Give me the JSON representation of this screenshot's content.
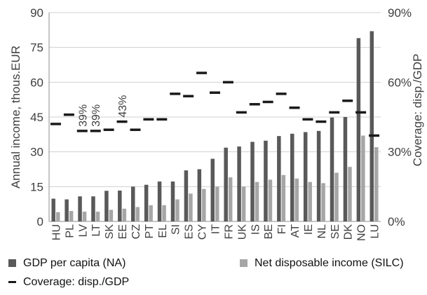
{
  "chart_data": {
    "type": "bar",
    "categories": [
      "HU",
      "PL",
      "LV",
      "LT",
      "SK",
      "EE",
      "CZ",
      "PT",
      "EL",
      "SI",
      "ES",
      "CY",
      "IT",
      "FR",
      "UK",
      "IS",
      "BE",
      "FI",
      "AT",
      "IE",
      "NL",
      "SE",
      "DK",
      "NO",
      "LU"
    ],
    "series": [
      {
        "name": "GDP per capita (NA)",
        "axis": "left",
        "color": "#595959",
        "values": [
          9.8,
          9.5,
          10.8,
          10.8,
          13.2,
          13.3,
          15,
          15.8,
          17.2,
          17.2,
          22,
          22.5,
          27,
          31.8,
          32.3,
          34.3,
          34.8,
          36.8,
          37.8,
          38.5,
          39,
          44.8,
          45,
          79,
          82
        ]
      },
      {
        "name": "Net disposable income (SILC)",
        "axis": "left",
        "color": "#a6a6a6",
        "values": [
          4,
          4.5,
          4.2,
          4.2,
          5,
          5.5,
          6.2,
          7,
          7,
          9.5,
          12,
          14,
          15,
          19,
          15,
          17,
          18,
          20,
          18.5,
          17,
          16.5,
          21,
          23.5,
          37,
          32
        ]
      },
      {
        "name": "Coverage: disp./GDP",
        "axis": "right",
        "type": "marker",
        "color": "#1a1a1a",
        "values": [
          42,
          46,
          39,
          39,
          39.5,
          43,
          39.5,
          44,
          44,
          55,
          54,
          64,
          55.5,
          60,
          47,
          50.5,
          51.5,
          55,
          49,
          44,
          43,
          47,
          52,
          47,
          37
        ]
      }
    ],
    "annotations": [
      {
        "category": "LV",
        "text": "39%"
      },
      {
        "category": "LT",
        "text": "39%"
      },
      {
        "category": "EE",
        "text": "43%"
      }
    ],
    "ylabel": "Annual income, thous.EUR",
    "y2label": "Coverage: disp./GDP",
    "ylim": [
      0,
      90
    ],
    "y2lim": [
      0,
      90
    ],
    "yticks": [
      "0",
      "15",
      "30",
      "45",
      "60",
      "75",
      "90"
    ],
    "y2ticks": [
      "0%",
      "30%",
      "60%",
      "90%"
    ],
    "y2tick_values": [
      0,
      30,
      60,
      90
    ],
    "grid": true,
    "legend_position": "bottom"
  }
}
